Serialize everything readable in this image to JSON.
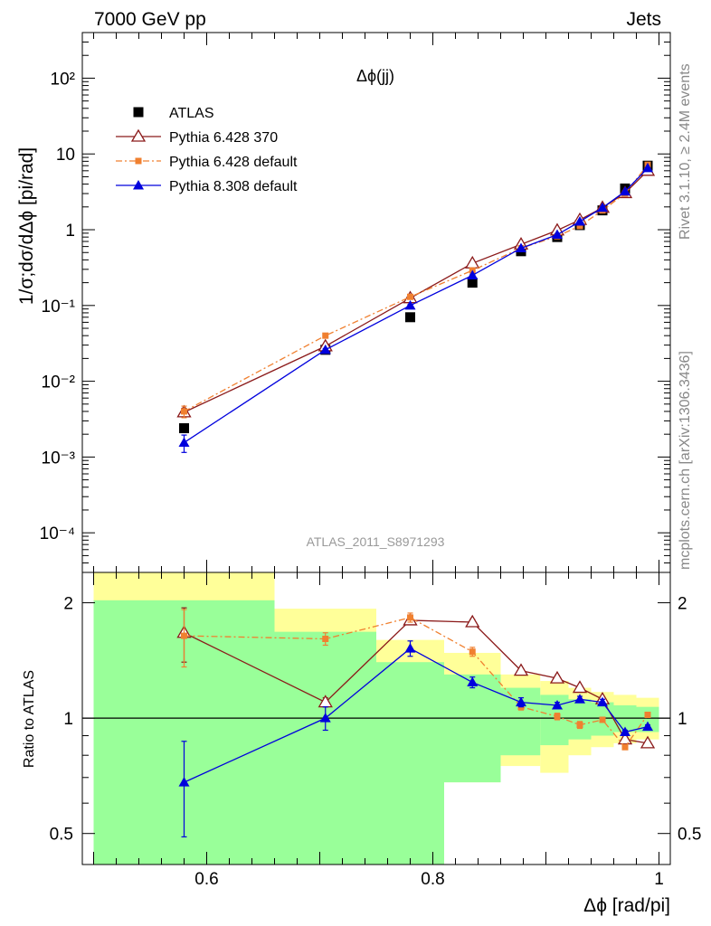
{
  "header": {
    "left": "7000 GeV pp",
    "right": "Jets"
  },
  "side_labels": {
    "rivet": "Rivet 3.1.10, ≥ 2.4M events",
    "mcplots": "mcplots.cern.ch [arXiv:1306.3436]"
  },
  "chart_data": [
    {
      "type": "scatter",
      "panel": "main",
      "title": "Δϕ(jj)",
      "ylabel": "1/σ;dσ/dΔϕ [pi/rad]",
      "yscale": "log",
      "xlim": [
        0.49,
        1.01
      ],
      "ylim": [
        3e-05,
        400
      ],
      "analysis_label": "ATLAS_2011_S8971293",
      "ytick_labels": [
        "10⁻⁴",
        "10⁻³",
        "10⁻²",
        "10⁻¹",
        "1",
        "10",
        "10²"
      ],
      "ytick_values": [
        0.0001,
        0.001,
        0.01,
        0.1,
        1,
        10,
        100
      ],
      "legend_position": "top-left",
      "series": [
        {
          "name": "ATLAS",
          "color": "#000000",
          "marker": "filled-square",
          "x": [
            0.58,
            0.705,
            0.78,
            0.835,
            0.878,
            0.91,
            0.93,
            0.95,
            0.97,
            0.99
          ],
          "y": [
            0.0024,
            0.026,
            0.07,
            0.2,
            0.52,
            0.8,
            1.15,
            1.8,
            3.5,
            7.0
          ]
        },
        {
          "name": "Pythia 6.428 370",
          "color": "#8b1a1a",
          "marker": "open-triangle",
          "line": "solid",
          "x": [
            0.58,
            0.705,
            0.78,
            0.835,
            0.878,
            0.91,
            0.93,
            0.95,
            0.97,
            0.99
          ],
          "y": [
            0.0039,
            0.029,
            0.125,
            0.36,
            0.64,
            0.98,
            1.35,
            1.95,
            3.05,
            6.0
          ],
          "yerr": [
            0.0005,
            0.001,
            0.003,
            0.005,
            0.008,
            0.01,
            0.015,
            0.02,
            0.03,
            0.05
          ]
        },
        {
          "name": "Pythia 6.428 default",
          "color": "#f08030",
          "marker": "filled-square-small",
          "line": "dashdot",
          "x": [
            0.58,
            0.705,
            0.78,
            0.835,
            0.878,
            0.91,
            0.93,
            0.95,
            0.97,
            0.99
          ],
          "y": [
            0.004,
            0.04,
            0.13,
            0.29,
            0.57,
            0.82,
            1.12,
            1.8,
            3.0,
            7.2
          ],
          "yerr": [
            0.0007,
            0.002,
            0.004,
            0.006,
            0.01,
            0.01,
            0.015,
            0.02,
            0.03,
            0.06
          ]
        },
        {
          "name": "Pythia 8.308 default",
          "color": "#0000dd",
          "marker": "filled-triangle",
          "line": "solid",
          "x": [
            0.58,
            0.705,
            0.78,
            0.835,
            0.878,
            0.91,
            0.93,
            0.95,
            0.97,
            0.99
          ],
          "y": [
            0.00155,
            0.026,
            0.1,
            0.25,
            0.57,
            0.86,
            1.28,
            1.95,
            3.2,
            6.5
          ],
          "yerr": [
            0.0004,
            0.001,
            0.003,
            0.005,
            0.008,
            0.01,
            0.015,
            0.02,
            0.03,
            0.05
          ]
        }
      ]
    },
    {
      "type": "scatter",
      "panel": "ratio",
      "ylabel": "Ratio to ATLAS",
      "xlabel": "Δϕ [rad/pi]",
      "yscale": "log",
      "xlim": [
        0.49,
        1.01
      ],
      "ylim": [
        0.415,
        2.4
      ],
      "xtick_labels": [
        "0.6",
        "0.8",
        "1"
      ],
      "xtick_values": [
        0.6,
        0.8,
        1.0
      ],
      "ytick_labels": [
        "0.5",
        "1",
        "2"
      ],
      "ytick_values": [
        0.5,
        1,
        2
      ],
      "bands": {
        "edges": [
          0.5,
          0.66,
          0.75,
          0.81,
          0.86,
          0.895,
          0.92,
          0.94,
          0.96,
          0.98,
          1.0
        ],
        "green": {
          "color": "#99ff99",
          "lo": [
            0.415,
            0.415,
            0.415,
            0.68,
            0.8,
            0.85,
            0.88,
            0.9,
            0.92,
            0.92
          ],
          "hi": [
            2.03,
            1.68,
            1.4,
            1.3,
            1.2,
            1.15,
            1.12,
            1.1,
            1.08,
            1.07
          ]
        },
        "yellow": {
          "color": "#ffff99",
          "lo": [
            0.415,
            0.55,
            0.63,
            0.68,
            0.75,
            0.72,
            0.8,
            0.84,
            0.86,
            0.88
          ],
          "hi": [
            2.4,
            1.93,
            1.6,
            1.48,
            1.3,
            1.25,
            1.2,
            1.17,
            1.15,
            1.13
          ]
        }
      },
      "series": [
        {
          "name": "Pythia 6.428 370",
          "color": "#8b1a1a",
          "marker": "open-triangle",
          "line": "solid",
          "x": [
            0.58,
            0.705,
            0.78,
            0.835,
            0.878,
            0.91,
            0.93,
            0.95,
            0.97,
            0.99
          ],
          "y": [
            1.67,
            1.1,
            1.8,
            1.78,
            1.33,
            1.27,
            1.2,
            1.12,
            0.88,
            0.86
          ],
          "yerr": [
            0.27,
            0.03,
            0.04,
            0.03,
            0.02,
            0.02,
            0.01,
            0.01,
            0.01,
            0.01
          ]
        },
        {
          "name": "Pythia 6.428 default",
          "color": "#f08030",
          "marker": "filled-square-small",
          "line": "dashdot",
          "x": [
            0.58,
            0.705,
            0.78,
            0.835,
            0.878,
            0.91,
            0.93,
            0.95,
            0.97,
            0.99
          ],
          "y": [
            1.64,
            1.61,
            1.83,
            1.49,
            1.07,
            1.01,
            0.96,
            0.99,
            0.84,
            1.02
          ],
          "yerr": [
            0.28,
            0.06,
            0.05,
            0.04,
            0.02,
            0.02,
            0.02,
            0.01,
            0.01,
            0.01
          ]
        },
        {
          "name": "Pythia 8.308 default",
          "color": "#0000dd",
          "marker": "filled-triangle",
          "line": "solid",
          "x": [
            0.58,
            0.705,
            0.78,
            0.835,
            0.878,
            0.91,
            0.93,
            0.95,
            0.97,
            0.99
          ],
          "y": [
            0.68,
            1.0,
            1.52,
            1.24,
            1.1,
            1.08,
            1.12,
            1.1,
            0.92,
            0.95
          ],
          "yerr": [
            0.19,
            0.07,
            0.07,
            0.04,
            0.03,
            0.02,
            0.02,
            0.02,
            0.01,
            0.01
          ]
        }
      ]
    }
  ]
}
